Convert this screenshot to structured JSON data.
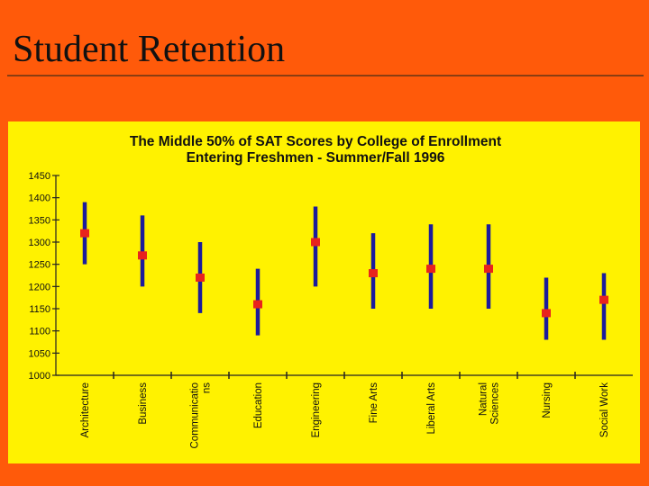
{
  "slide": {
    "title": "Student Retention"
  },
  "chart_data": {
    "type": "range",
    "title": "The Middle 50% of SAT Scores by College of Enrollment",
    "subtitle": "Entering Freshmen - Summer/Fall 1996",
    "xlabel": "",
    "ylabel": "",
    "ylim": [
      1000,
      1450
    ],
    "yticks": [
      1000,
      1050,
      1100,
      1150,
      1200,
      1250,
      1300,
      1350,
      1400,
      1450
    ],
    "grid": false,
    "categories": [
      [
        "Architecture"
      ],
      [
        "Business"
      ],
      [
        "Communicatio",
        "ns"
      ],
      [
        "Education"
      ],
      [
        "Engineering"
      ],
      [
        "Fine Arts"
      ],
      [
        "Liberal Arts"
      ],
      [
        "Natural",
        "Sciences"
      ],
      [
        "Nursing"
      ],
      [
        "Social Work"
      ]
    ],
    "series": [
      {
        "low": 1250,
        "high": 1390,
        "mid": 1320
      },
      {
        "low": 1200,
        "high": 1360,
        "mid": 1270
      },
      {
        "low": 1140,
        "high": 1300,
        "mid": 1220
      },
      {
        "low": 1090,
        "high": 1240,
        "mid": 1160
      },
      {
        "low": 1200,
        "high": 1380,
        "mid": 1300
      },
      {
        "low": 1150,
        "high": 1320,
        "mid": 1230
      },
      {
        "low": 1150,
        "high": 1340,
        "mid": 1240
      },
      {
        "low": 1150,
        "high": 1340,
        "mid": 1240
      },
      {
        "low": 1080,
        "high": 1220,
        "mid": 1140
      },
      {
        "low": 1080,
        "high": 1230,
        "mid": 1170
      }
    ],
    "colors": {
      "bar": "#1c1c9c",
      "marker": "#e8231d",
      "axis": "#222222",
      "background": "#fff200"
    }
  }
}
